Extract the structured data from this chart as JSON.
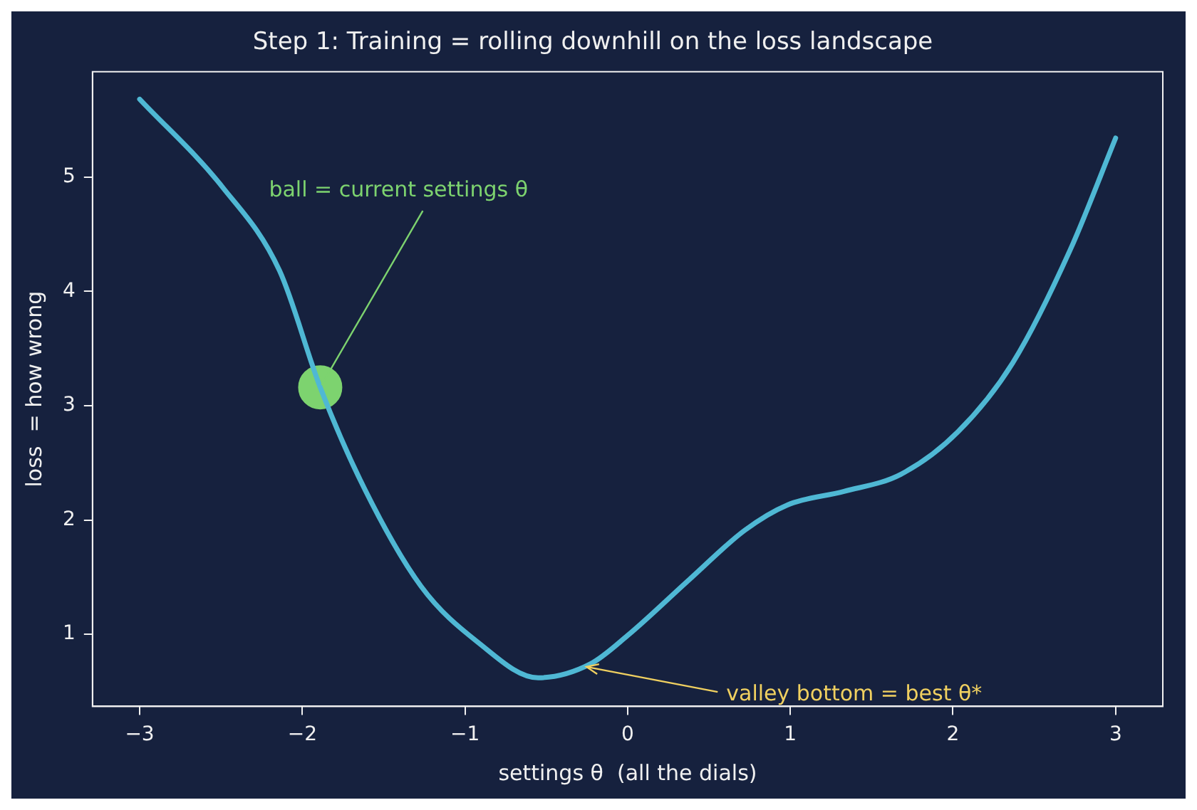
{
  "chart_data": {
    "type": "line",
    "title": "Step 1: Training = rolling downhill on the loss landscape",
    "xlabel": "settings θ  (all the dials)",
    "ylabel": "loss  = how wrong",
    "series": [
      {
        "type": "line",
        "color": "#4fb8d4",
        "x": [
          -3,
          -2.49,
          -2.14,
          -1.89,
          -1.62,
          -1.27,
          -0.92,
          -0.55,
          -0.23,
          0,
          0.38,
          0.72,
          0.98,
          1.33,
          1.68,
          2.03,
          2.37,
          2.72,
          3
        ],
        "values": [
          5.68,
          4.91,
          4.18,
          3.16,
          2.28,
          1.42,
          0.93,
          0.62,
          0.74,
          0.99,
          1.48,
          1.91,
          2.13,
          2.25,
          2.4,
          2.77,
          3.38,
          4.36,
          5.34
        ]
      },
      {
        "type": "scatter",
        "color": "#7dd36f",
        "x": [
          -1.89
        ],
        "values": [
          3.16
        ]
      }
    ],
    "annotations": [
      {
        "text": "ball = current settings θ",
        "x": -1.89,
        "y": 3.16
      },
      {
        "text": "valley bottom = best θ*",
        "x": -0.27,
        "y": 0.72
      }
    ],
    "xlim": [
      -3.29,
      3.29
    ],
    "ylim": [
      0.37,
      5.92
    ],
    "xticks": [
      -3,
      -2,
      -1,
      0,
      1,
      2,
      3
    ],
    "yticks": [
      1,
      2,
      3,
      4,
      5
    ],
    "grid": false,
    "legend": false
  }
}
